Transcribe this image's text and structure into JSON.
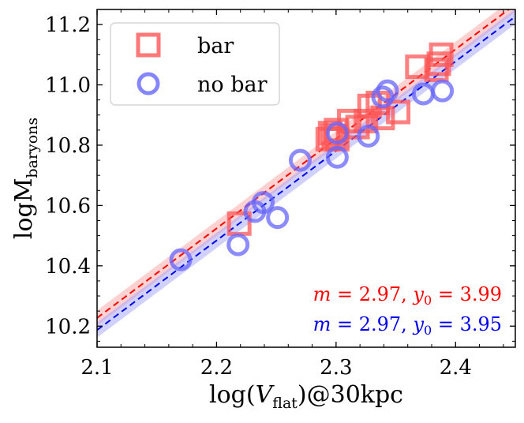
{
  "chart_data": {
    "type": "scatter",
    "title": "",
    "xlabel": "log(V_flat)@30kpc",
    "xlabel_parts": {
      "pre": "log(",
      "var": "V",
      "sub": "flat",
      "post": ")@30kpc"
    },
    "ylabel": "logM_baryons",
    "ylabel_parts": {
      "main": "logM",
      "sub": "baryons"
    },
    "xlim": [
      2.1,
      2.45
    ],
    "ylim": [
      10.13,
      11.25
    ],
    "xticks": [
      2.1,
      2.2,
      2.3,
      2.4
    ],
    "xtick_labels": [
      "2.1",
      "2.2",
      "2.3",
      "2.4"
    ],
    "yticks": [
      10.2,
      10.4,
      10.6,
      10.8,
      11.0,
      11.2
    ],
    "ytick_labels": [
      "10.2",
      "10.4",
      "10.6",
      "10.8",
      "11.0",
      "11.2"
    ],
    "grid": false,
    "legend_position": "top-left",
    "series": [
      {
        "name": "bar",
        "marker": "square",
        "color": "#ff5555",
        "fit": {
          "slope": 2.97,
          "intercept": 3.99,
          "band": 0.025,
          "line_color": "#ff0000",
          "band_color": "#ff9999"
        },
        "points": [
          [
            2.219,
            10.54
          ],
          [
            2.293,
            10.82
          ],
          [
            2.295,
            10.84
          ],
          [
            2.298,
            10.83
          ],
          [
            2.3,
            10.85
          ],
          [
            2.301,
            10.82
          ],
          [
            2.311,
            10.88
          ],
          [
            2.318,
            10.86
          ],
          [
            2.325,
            10.88
          ],
          [
            2.328,
            10.93
          ],
          [
            2.335,
            10.94
          ],
          [
            2.339,
            10.89
          ],
          [
            2.352,
            10.91
          ],
          [
            2.368,
            11.06
          ],
          [
            2.384,
            11.05
          ],
          [
            2.386,
            11.07
          ],
          [
            2.388,
            11.1
          ]
        ]
      },
      {
        "name": "no bar",
        "marker": "circle",
        "color": "#6666ff",
        "fit": {
          "slope": 2.97,
          "intercept": 3.95,
          "band": 0.025,
          "line_color": "#0000ee",
          "band_color": "#9999ff"
        },
        "points": [
          [
            2.17,
            10.42
          ],
          [
            2.218,
            10.47
          ],
          [
            2.232,
            10.58
          ],
          [
            2.239,
            10.61
          ],
          [
            2.251,
            10.56
          ],
          [
            2.27,
            10.75
          ],
          [
            2.301,
            10.76
          ],
          [
            2.301,
            10.84
          ],
          [
            2.327,
            10.83
          ],
          [
            2.339,
            10.96
          ],
          [
            2.343,
            10.98
          ],
          [
            2.373,
            10.97
          ],
          [
            2.389,
            10.98
          ]
        ]
      }
    ],
    "annotations": [
      {
        "id": "bar-fit",
        "m_label": "m",
        "eq": " = ",
        "m_value": "2.97",
        "sep": ", ",
        "y_label": "y",
        "y_sub": "0",
        "y_value": "3.99",
        "color": "#ff0000"
      },
      {
        "id": "nobar-fit",
        "m_label": "m",
        "eq": " = ",
        "m_value": "2.97",
        "sep": ", ",
        "y_label": "y",
        "y_sub": "0",
        "y_value": "3.95",
        "color": "#0000ee"
      }
    ]
  }
}
